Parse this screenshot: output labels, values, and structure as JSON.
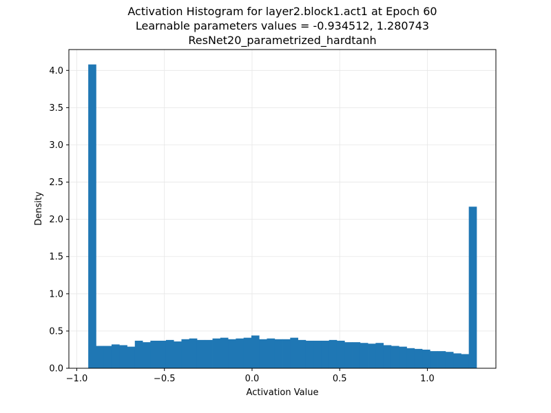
{
  "chart_data": {
    "type": "bar",
    "title_lines": [
      "Activation Histogram for layer2.block1.act1 at Epoch 60",
      "Learnable parameters values = -0.934512, 1.280743",
      "ResNet20_parametrized_hardtanh"
    ],
    "xlabel": "Activation Value",
    "ylabel": "Density",
    "xlim": [
      -1.045,
      1.391
    ],
    "ylim": [
      0,
      4.28
    ],
    "xticks": [
      -1.0,
      -0.5,
      0.0,
      0.5,
      1.0
    ],
    "xtick_labels": [
      "−1.0",
      "−0.5",
      "0.0",
      "0.5",
      "1.0"
    ],
    "yticks": [
      0.0,
      0.5,
      1.0,
      1.5,
      2.0,
      2.5,
      3.0,
      3.5,
      4.0
    ],
    "ytick_labels": [
      "0.0",
      "0.5",
      "1.0",
      "1.5",
      "2.0",
      "2.5",
      "3.0",
      "3.5",
      "4.0"
    ],
    "grid": true,
    "bar_color": "#1f77b4",
    "bin_start": -0.934512,
    "bin_end": 1.280743,
    "values": [
      4.08,
      0.3,
      0.3,
      0.32,
      0.31,
      0.29,
      0.37,
      0.35,
      0.37,
      0.37,
      0.38,
      0.36,
      0.39,
      0.4,
      0.38,
      0.38,
      0.4,
      0.41,
      0.39,
      0.4,
      0.41,
      0.44,
      0.39,
      0.4,
      0.39,
      0.39,
      0.41,
      0.38,
      0.37,
      0.37,
      0.37,
      0.38,
      0.37,
      0.35,
      0.35,
      0.34,
      0.33,
      0.34,
      0.31,
      0.3,
      0.29,
      0.27,
      0.26,
      0.25,
      0.23,
      0.23,
      0.22,
      0.2,
      0.19,
      2.17
    ]
  }
}
